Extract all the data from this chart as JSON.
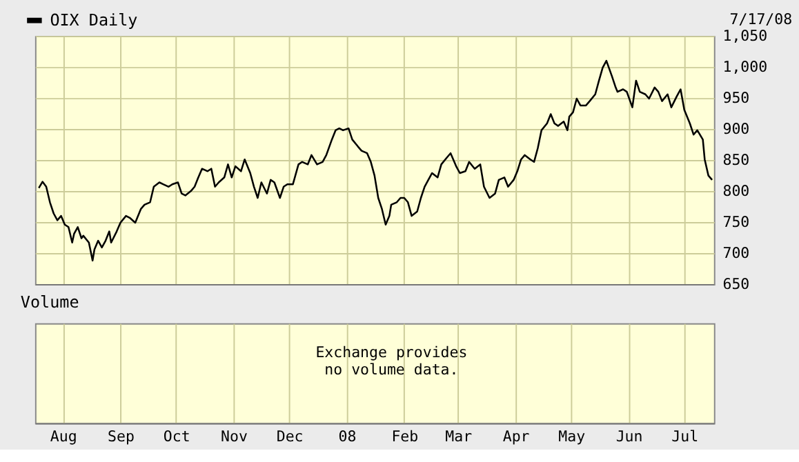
{
  "chart_data": [
    {
      "type": "line",
      "legend": "top left",
      "grid": true,
      "tick_labels": "y",
      "annotations": [
        "7/17/08"
      ],
      "xlim": [
        "2007-07-17",
        "2008-07-17"
      ],
      "xticks": [
        {
          "value": "2007-08-01",
          "label": "Aug"
        },
        {
          "value": "2007-09-01",
          "label": "Sep"
        },
        {
          "value": "2007-10-01",
          "label": "Oct"
        },
        {
          "value": "2007-11-01",
          "label": "Nov"
        },
        {
          "value": "2007-12-01",
          "label": "Dec"
        },
        {
          "value": "2008-01-01",
          "label": "08"
        },
        {
          "value": "2008-02-01",
          "label": "Feb"
        },
        {
          "value": "2008-03-01",
          "label": "Mar"
        },
        {
          "value": "2008-04-01",
          "label": "Apr"
        },
        {
          "value": "2008-05-01",
          "label": "May"
        },
        {
          "value": "2008-06-01",
          "label": "Jun"
        },
        {
          "value": "2008-07-01",
          "label": "Jul"
        }
      ],
      "ylim": [
        650,
        1050
      ],
      "yticks": [
        650,
        700,
        750,
        800,
        850,
        900,
        950,
        {
          "value": 1000,
          "label": "1,000"
        },
        {
          "value": 1050,
          "label": "1,050"
        }
      ],
      "series": [
        {
          "name": "OIX Daily",
          "color": "#000000",
          "x": [
            "2007-07-19",
            "2007-07-21",
            "2007-07-23",
            "2007-07-25",
            "2007-07-27",
            "2007-07-29",
            "2007-07-31",
            "2007-08-02",
            "2007-08-04",
            "2007-08-06",
            "2007-08-07",
            "2007-08-09",
            "2007-08-11",
            "2007-08-12",
            "2007-08-15",
            "2007-08-17",
            "2007-08-18",
            "2007-08-20",
            "2007-08-22",
            "2007-08-24",
            "2007-08-26",
            "2007-08-27",
            "2007-08-30",
            "2007-09-01",
            "2007-09-04",
            "2007-09-06",
            "2007-09-09",
            "2007-09-12",
            "2007-09-14",
            "2007-09-17",
            "2007-09-19",
            "2007-09-22",
            "2007-09-24",
            "2007-09-27",
            "2007-09-29",
            "2007-10-02",
            "2007-10-04",
            "2007-10-06",
            "2007-10-09",
            "2007-10-11",
            "2007-10-13",
            "2007-10-15",
            "2007-10-18",
            "2007-10-20",
            "2007-10-22",
            "2007-10-24",
            "2007-10-27",
            "2007-10-29",
            "2007-10-31",
            "2007-11-02",
            "2007-11-05",
            "2007-11-07",
            "2007-11-10",
            "2007-11-12",
            "2007-11-14",
            "2007-11-16",
            "2007-11-19",
            "2007-11-21",
            "2007-11-23",
            "2007-11-26",
            "2007-11-28",
            "2007-11-30",
            "2007-12-03",
            "2007-12-06",
            "2007-12-08",
            "2007-12-11",
            "2007-12-13",
            "2007-12-16",
            "2007-12-19",
            "2007-12-21",
            "2007-12-24",
            "2007-12-26",
            "2007-12-28",
            "2007-12-30",
            "2008-01-02",
            "2008-01-04",
            "2008-01-07",
            "2008-01-09",
            "2008-01-12",
            "2008-01-14",
            "2008-01-16",
            "2008-01-18",
            "2008-01-20",
            "2008-01-22",
            "2008-01-24",
            "2008-01-25",
            "2008-01-28",
            "2008-01-30",
            "2008-02-01",
            "2008-02-03",
            "2008-02-05",
            "2008-02-08",
            "2008-02-10",
            "2008-02-12",
            "2008-02-14",
            "2008-02-16",
            "2008-02-19",
            "2008-02-21",
            "2008-02-24",
            "2008-02-26",
            "2008-02-29",
            "2008-03-02",
            "2008-03-05",
            "2008-03-07",
            "2008-03-10",
            "2008-03-13",
            "2008-03-15",
            "2008-03-18",
            "2008-03-21",
            "2008-03-23",
            "2008-03-26",
            "2008-03-28",
            "2008-03-31",
            "2008-04-02",
            "2008-04-04",
            "2008-04-06",
            "2008-04-09",
            "2008-04-11",
            "2008-04-13",
            "2008-04-15",
            "2008-04-18",
            "2008-04-20",
            "2008-04-22",
            "2008-04-24",
            "2008-04-27",
            "2008-04-29",
            "2008-04-30",
            "2008-05-02",
            "2008-05-04",
            "2008-05-06",
            "2008-05-09",
            "2008-05-11",
            "2008-05-14",
            "2008-05-16",
            "2008-05-18",
            "2008-05-20",
            "2008-05-23",
            "2008-05-25",
            "2008-05-26",
            "2008-05-29",
            "2008-05-31",
            "2008-06-03",
            "2008-06-05",
            "2008-06-07",
            "2008-06-10",
            "2008-06-12",
            "2008-06-15",
            "2008-06-17",
            "2008-06-19",
            "2008-06-22",
            "2008-06-24",
            "2008-06-27",
            "2008-06-29",
            "2008-07-01",
            "2008-07-04",
            "2008-07-06",
            "2008-07-08",
            "2008-07-11",
            "2008-07-12",
            "2008-07-14",
            "2008-07-16"
          ],
          "values": [
            805,
            815,
            807,
            782,
            764,
            753,
            760,
            746,
            742,
            717,
            731,
            742,
            724,
            728,
            717,
            688,
            706,
            720,
            709,
            720,
            735,
            717,
            735,
            749,
            760,
            757,
            749,
            771,
            778,
            782,
            807,
            814,
            811,
            807,
            811,
            814,
            796,
            793,
            800,
            807,
            822,
            836,
            832,
            836,
            807,
            814,
            822,
            843,
            822,
            840,
            832,
            851,
            829,
            807,
            789,
            814,
            796,
            818,
            814,
            789,
            807,
            811,
            811,
            843,
            847,
            843,
            858,
            843,
            847,
            858,
            883,
            898,
            901,
            898,
            901,
            883,
            872,
            865,
            861,
            847,
            825,
            789,
            771,
            746,
            760,
            778,
            782,
            789,
            789,
            782,
            760,
            767,
            789,
            807,
            818,
            829,
            822,
            843,
            854,
            861,
            840,
            829,
            832,
            847,
            836,
            843,
            807,
            789,
            796,
            818,
            822,
            807,
            818,
            832,
            851,
            858,
            851,
            847,
            869,
            898,
            909,
            924,
            909,
            905,
            912,
            898,
            920,
            927,
            949,
            938,
            938,
            945,
            956,
            978,
            999,
            1010,
            985,
            967,
            960,
            964,
            960,
            935,
            978,
            960,
            956,
            949,
            967,
            960,
            945,
            956,
            935,
            953,
            964,
            931,
            909,
            891,
            898,
            883,
            851,
            825,
            818
          ]
        }
      ]
    },
    {
      "type": "other",
      "title": "Volume",
      "annotations": [
        "Exchange provides\nno volume data."
      ]
    }
  ]
}
